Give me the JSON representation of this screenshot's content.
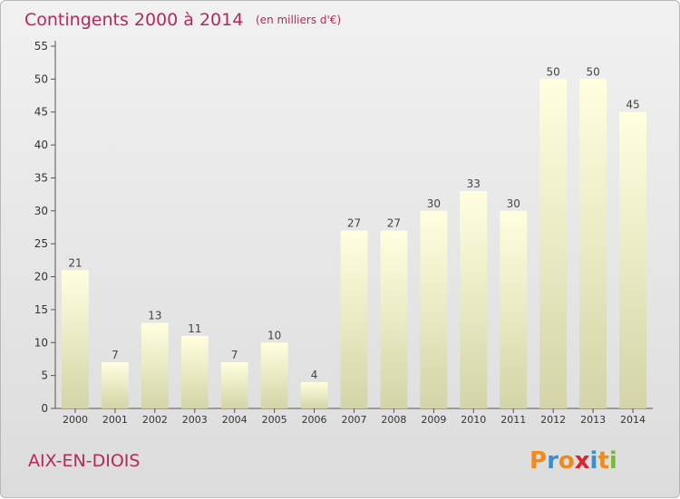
{
  "chart_data": {
    "type": "bar",
    "title": "Contingents 2000 à 2014",
    "subtitle": "(en milliers d'€)",
    "categories": [
      "2000",
      "2001",
      "2002",
      "2003",
      "2004",
      "2005",
      "2006",
      "2007",
      "2008",
      "2009",
      "2010",
      "2011",
      "2012",
      "2013",
      "2014"
    ],
    "values": [
      21,
      7,
      13,
      11,
      7,
      10,
      4,
      27,
      27,
      30,
      33,
      30,
      50,
      50,
      45
    ],
    "xlabel": "",
    "ylabel": "",
    "ylim": [
      0,
      55
    ],
    "yticks": [
      0,
      5,
      10,
      15,
      20,
      25,
      30,
      35,
      40,
      45,
      50,
      55
    ],
    "grid": false,
    "legend": "none",
    "colors": {
      "bar_top": "#ffffe0",
      "bar_bottom": "#d4d4a8",
      "title": "#b5285c"
    }
  },
  "footer": {
    "commune": "AIX-EN-DIOIS",
    "logo_letters": [
      "P",
      "r",
      "o",
      "x",
      "i",
      "t",
      "i"
    ],
    "logo_colors": [
      "#f08a1c",
      "#3a8ed8",
      "#f08a1c",
      "#d9232e",
      "#3a8ed8",
      "#f08a1c",
      "#7ab83a"
    ]
  }
}
